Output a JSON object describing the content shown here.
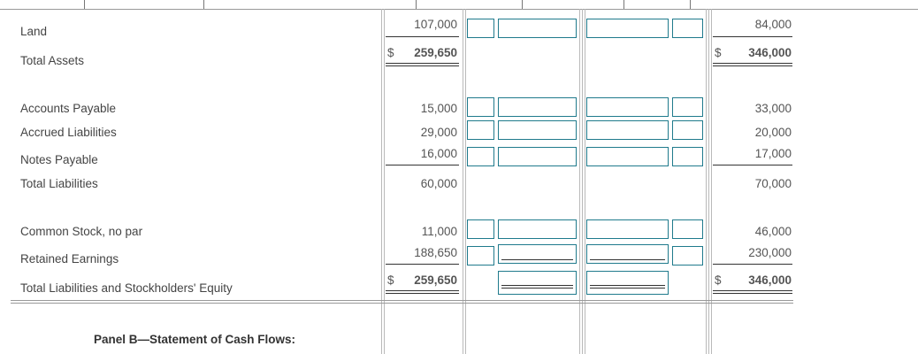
{
  "panel_a": {
    "rows": [
      {
        "label": "Land",
        "y1": "107,000",
        "y2": "84,000"
      },
      {
        "label": "Total Assets",
        "y1_prefix": "$",
        "y1": "259,650",
        "y2_prefix": "$",
        "y2": "346,000"
      },
      {
        "label": "Accounts Payable",
        "y1": "15,000",
        "y2": "33,000"
      },
      {
        "label": "Accrued Liabilities",
        "y1": "29,000",
        "y2": "20,000"
      },
      {
        "label": "Notes Payable",
        "y1": "16,000",
        "y2": "17,000"
      },
      {
        "label": "Total Liabilities",
        "y1": "60,000",
        "y2": "70,000"
      },
      {
        "label": "Common Stock, no par",
        "y1": "11,000",
        "y2": "46,000"
      },
      {
        "label": "Retained Earnings",
        "y1": "188,650",
        "y2": "230,000"
      },
      {
        "label": "Total Liabilities and Stockholders' Equity",
        "y1_prefix": "$",
        "y1": "259,650",
        "y2_prefix": "$",
        "y2": "346,000"
      }
    ]
  },
  "panel_b": {
    "title": "Panel B—Statement of Cash Flows:"
  }
}
